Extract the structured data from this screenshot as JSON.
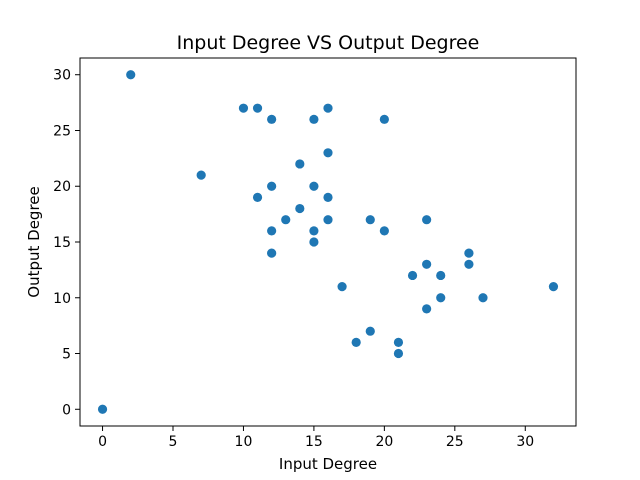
{
  "chart_data": {
    "type": "scatter",
    "title": "Input Degree VS Output Degree",
    "xlabel": "Input Degree",
    "ylabel": "Output Degree",
    "xlim": [
      -1.6,
      33.6
    ],
    "ylim": [
      -1.5,
      31.5
    ],
    "xticks": [
      0,
      5,
      10,
      15,
      20,
      25,
      30
    ],
    "yticks": [
      0,
      5,
      10,
      15,
      20,
      25,
      30
    ],
    "grid": false,
    "legend": "none",
    "marker_color": "#1f77b4",
    "points": [
      {
        "x": 0,
        "y": 0
      },
      {
        "x": 2,
        "y": 30
      },
      {
        "x": 7,
        "y": 21
      },
      {
        "x": 10,
        "y": 27
      },
      {
        "x": 11,
        "y": 27
      },
      {
        "x": 11,
        "y": 19
      },
      {
        "x": 12,
        "y": 26
      },
      {
        "x": 12,
        "y": 20
      },
      {
        "x": 12,
        "y": 16
      },
      {
        "x": 12,
        "y": 14
      },
      {
        "x": 13,
        "y": 17
      },
      {
        "x": 14,
        "y": 22
      },
      {
        "x": 14,
        "y": 18
      },
      {
        "x": 15,
        "y": 26
      },
      {
        "x": 15,
        "y": 20
      },
      {
        "x": 15,
        "y": 16
      },
      {
        "x": 15,
        "y": 15
      },
      {
        "x": 16,
        "y": 27
      },
      {
        "x": 16,
        "y": 23
      },
      {
        "x": 16,
        "y": 19
      },
      {
        "x": 16,
        "y": 17
      },
      {
        "x": 17,
        "y": 11
      },
      {
        "x": 18,
        "y": 6
      },
      {
        "x": 19,
        "y": 17
      },
      {
        "x": 19,
        "y": 7
      },
      {
        "x": 20,
        "y": 26
      },
      {
        "x": 20,
        "y": 16
      },
      {
        "x": 21,
        "y": 6
      },
      {
        "x": 21,
        "y": 5
      },
      {
        "x": 22,
        "y": 12
      },
      {
        "x": 23,
        "y": 17
      },
      {
        "x": 23,
        "y": 13
      },
      {
        "x": 23,
        "y": 9
      },
      {
        "x": 24,
        "y": 12
      },
      {
        "x": 24,
        "y": 10
      },
      {
        "x": 26,
        "y": 14
      },
      {
        "x": 26,
        "y": 13
      },
      {
        "x": 27,
        "y": 10
      },
      {
        "x": 32,
        "y": 11
      }
    ]
  }
}
